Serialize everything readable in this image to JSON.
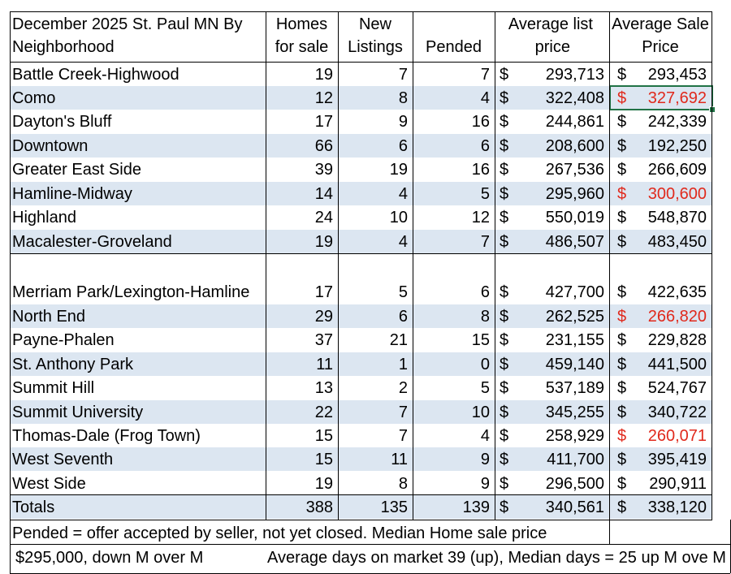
{
  "header": {
    "title_line1": "December 2025 St. Paul MN By",
    "title_line2": "Neighborhood",
    "homes_line1": "Homes",
    "homes_line2": "for sale",
    "new_line1": "New",
    "new_line2": "Listings",
    "pended": "Pended",
    "avg_list_line1": "Average list",
    "avg_list_line2": "price",
    "avg_sale_line1": "Average Sale",
    "avg_sale_line2": "Price"
  },
  "currency_symbol": "$",
  "rows": [
    {
      "name": "Battle Creek-Highwood",
      "homes": "19",
      "listings": "7",
      "pended": "7",
      "list": "293,713",
      "sale": "293,453",
      "sale_red": false
    },
    {
      "name": "Como",
      "homes": "12",
      "listings": "8",
      "pended": "4",
      "list": "322,408",
      "sale": "327,692",
      "sale_red": true
    },
    {
      "name": "Dayton's Bluff",
      "homes": "17",
      "listings": "9",
      "pended": "16",
      "list": "244,861",
      "sale": "242,339",
      "sale_red": false
    },
    {
      "name": "Downtown",
      "homes": "66",
      "listings": "6",
      "pended": "6",
      "list": "208,600",
      "sale": "192,250",
      "sale_red": false
    },
    {
      "name": "Greater East Side",
      "homes": "39",
      "listings": "19",
      "pended": "16",
      "list": "267,536",
      "sale": "266,609",
      "sale_red": false
    },
    {
      "name": "Hamline-Midway",
      "homes": "14",
      "listings": "4",
      "pended": "5",
      "list": "295,960",
      "sale": "300,600",
      "sale_red": true
    },
    {
      "name": "Highland",
      "homes": "24",
      "listings": "10",
      "pended": "12",
      "list": "550,019",
      "sale": "548,870",
      "sale_red": false
    },
    {
      "name": "Macalester-Groveland",
      "homes": "19",
      "listings": "4",
      "pended": "7",
      "list": "486,507",
      "sale": "483,450",
      "sale_red": false
    },
    {
      "name": "Merriam Park/Lexington-Hamline",
      "homes": "17",
      "listings": "5",
      "pended": "6",
      "list": "427,700",
      "sale": "422,635",
      "sale_red": false
    },
    {
      "name": "North End",
      "homes": "29",
      "listings": "6",
      "pended": "8",
      "list": "262,525",
      "sale": "266,820",
      "sale_red": true
    },
    {
      "name": "Payne-Phalen",
      "homes": "37",
      "listings": "21",
      "pended": "15",
      "list": "231,155",
      "sale": "229,828",
      "sale_red": false
    },
    {
      "name": "St. Anthony Park",
      "homes": "11",
      "listings": "1",
      "pended": "0",
      "list": "459,140",
      "sale": "441,500",
      "sale_red": false
    },
    {
      "name": "Summit Hill",
      "homes": "13",
      "listings": "2",
      "pended": "5",
      "list": "537,189",
      "sale": "524,767",
      "sale_red": false
    },
    {
      "name": "Summit University",
      "homes": "22",
      "listings": "7",
      "pended": "10",
      "list": "345,255",
      "sale": "340,722",
      "sale_red": false
    },
    {
      "name": "Thomas-Dale (Frog Town)",
      "homes": "15",
      "listings": "7",
      "pended": "4",
      "list": "258,929",
      "sale": "260,071",
      "sale_red": true
    },
    {
      "name": "West Seventh",
      "homes": "15",
      "listings": "11",
      "pended": "9",
      "list": "411,700",
      "sale": "395,419",
      "sale_red": false
    },
    {
      "name": "West Side",
      "homes": "19",
      "listings": "8",
      "pended": "9",
      "list": "296,500",
      "sale": "290,911",
      "sale_red": false
    },
    {
      "name": "Totals",
      "homes": "388",
      "listings": "135",
      "pended": "139",
      "list": "340,561",
      "sale": "338,120",
      "sale_red": false
    }
  ],
  "footer": {
    "note1": "Pended = offer accepted by seller, not yet closed. Median Home sale price",
    "note2_left": "$295,000, down M over M",
    "note2_right": "Average days on market 39 (up), Median days = 25 up M ove M"
  },
  "colors": {
    "band": "#dce6f1",
    "red_text": "#e0291c",
    "selection": "#217346"
  }
}
